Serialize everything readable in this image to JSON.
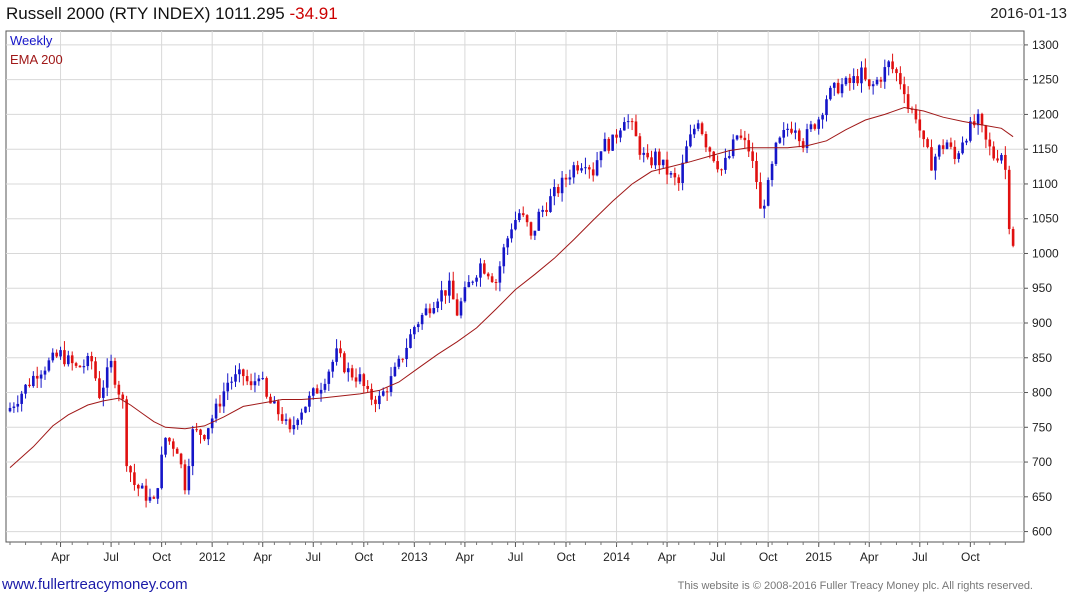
{
  "header": {
    "title": "Russell 2000 (RTY INDEX) 1011.295",
    "change": "-34.91",
    "date": "2016-01-13"
  },
  "footer": {
    "site": "www.fullertreacymoney.com",
    "copyright": "This website is © 2008-2016 Fuller Treacy Money plc. All rights reserved."
  },
  "colors": {
    "up": "#1515c8",
    "down": "#e01010",
    "ema": "#a01818",
    "grid": "#d8d8d8"
  },
  "chart_data": {
    "type": "candlestick",
    "title": "Russell 2000 (RTY INDEX)",
    "period": "Weekly",
    "legend": [
      "Weekly",
      "EMA 200"
    ],
    "legend_placement": "top-left",
    "ylim": [
      585,
      1320
    ],
    "y_ticks": [
      600,
      650,
      700,
      750,
      800,
      850,
      900,
      950,
      1000,
      1050,
      1100,
      1150,
      1200,
      1250,
      1300
    ],
    "x_ticks": [
      {
        "label": "Apr",
        "week": 13
      },
      {
        "label": "Jul",
        "week": 26
      },
      {
        "label": "Oct",
        "week": 39
      },
      {
        "label": "2012",
        "week": 52
      },
      {
        "label": "Apr",
        "week": 65
      },
      {
        "label": "Jul",
        "week": 78
      },
      {
        "label": "Oct",
        "week": 91
      },
      {
        "label": "2013",
        "week": 104
      },
      {
        "label": "Apr",
        "week": 117
      },
      {
        "label": "Jul",
        "week": 130
      },
      {
        "label": "Oct",
        "week": 143
      },
      {
        "label": "2014",
        "week": 156
      },
      {
        "label": "Apr",
        "week": 169
      },
      {
        "label": "Jul",
        "week": 182
      },
      {
        "label": "Oct",
        "week": 195
      },
      {
        "label": "2015",
        "week": 208
      },
      {
        "label": "Apr",
        "week": 221
      },
      {
        "label": "Jul",
        "week": 234
      },
      {
        "label": "Oct",
        "week": 247
      }
    ],
    "weeks_total": 260,
    "weekly_close_path": [
      [
        0,
        778
      ],
      [
        7,
        830
      ],
      [
        13,
        855
      ],
      [
        17,
        835
      ],
      [
        21,
        845
      ],
      [
        23,
        798
      ],
      [
        26,
        840
      ],
      [
        29,
        785
      ],
      [
        30,
        705
      ],
      [
        32,
        668
      ],
      [
        35,
        652
      ],
      [
        37,
        640
      ],
      [
        40,
        735
      ],
      [
        43,
        720
      ],
      [
        45,
        668
      ],
      [
        47,
        742
      ],
      [
        50,
        742
      ],
      [
        53,
        775
      ],
      [
        56,
        815
      ],
      [
        60,
        825
      ],
      [
        62,
        805
      ],
      [
        64,
        830
      ],
      [
        66,
        790
      ],
      [
        70,
        765
      ],
      [
        72,
        740
      ],
      [
        74,
        770
      ],
      [
        77,
        790
      ],
      [
        80,
        812
      ],
      [
        84,
        855
      ],
      [
        87,
        830
      ],
      [
        90,
        820
      ],
      [
        92,
        795
      ],
      [
        95,
        790
      ],
      [
        98,
        818
      ],
      [
        100,
        840
      ],
      [
        104,
        895
      ],
      [
        106,
        910
      ],
      [
        110,
        940
      ],
      [
        113,
        950
      ],
      [
        115,
        915
      ],
      [
        118,
        955
      ],
      [
        121,
        985
      ],
      [
        123,
        975
      ],
      [
        125,
        960
      ],
      [
        127,
        1005
      ],
      [
        129,
        1040
      ],
      [
        131,
        1058
      ],
      [
        133,
        1040
      ],
      [
        134,
        1020
      ],
      [
        136,
        1055
      ],
      [
        139,
        1078
      ],
      [
        142,
        1100
      ],
      [
        145,
        1125
      ],
      [
        148,
        1135
      ],
      [
        150,
        1118
      ],
      [
        152,
        1155
      ],
      [
        155,
        1160
      ],
      [
        158,
        1198
      ],
      [
        160,
        1180
      ],
      [
        162,
        1150
      ],
      [
        164,
        1128
      ],
      [
        166,
        1140
      ],
      [
        168,
        1125
      ],
      [
        170,
        1110
      ],
      [
        172,
        1100
      ],
      [
        174,
        1150
      ],
      [
        177,
        1195
      ],
      [
        179,
        1160
      ],
      [
        181,
        1140
      ],
      [
        183,
        1120
      ],
      [
        185,
        1140
      ],
      [
        187,
        1170
      ],
      [
        190,
        1150
      ],
      [
        192,
        1105
      ],
      [
        193,
        1060
      ],
      [
        195,
        1095
      ],
      [
        197,
        1150
      ],
      [
        200,
        1180
      ],
      [
        202,
        1185
      ],
      [
        204,
        1160
      ],
      [
        206,
        1180
      ],
      [
        208,
        1195
      ],
      [
        210,
        1225
      ],
      [
        213,
        1240
      ],
      [
        216,
        1245
      ],
      [
        219,
        1258
      ],
      [
        221,
        1235
      ],
      [
        224,
        1255
      ],
      [
        226,
        1272
      ],
      [
        228,
        1258
      ],
      [
        230,
        1238
      ],
      [
        231,
        1210
      ],
      [
        233,
        1200
      ],
      [
        235,
        1155
      ],
      [
        237,
        1130
      ],
      [
        239,
        1150
      ],
      [
        241,
        1160
      ],
      [
        243,
        1135
      ],
      [
        245,
        1165
      ],
      [
        247,
        1180
      ],
      [
        249,
        1190
      ],
      [
        251,
        1160
      ],
      [
        253,
        1140
      ],
      [
        255,
        1145
      ],
      [
        256,
        1120
      ],
      [
        257,
        1046
      ],
      [
        258,
        1011
      ]
    ],
    "ema_200_path": [
      [
        0,
        692
      ],
      [
        6,
        722
      ],
      [
        11,
        752
      ],
      [
        15,
        768
      ],
      [
        20,
        782
      ],
      [
        24,
        788
      ],
      [
        28,
        792
      ],
      [
        31,
        782
      ],
      [
        34,
        770
      ],
      [
        37,
        758
      ],
      [
        40,
        750
      ],
      [
        45,
        748
      ],
      [
        50,
        752
      ],
      [
        55,
        765
      ],
      [
        60,
        780
      ],
      [
        65,
        785
      ],
      [
        70,
        790
      ],
      [
        75,
        790
      ],
      [
        80,
        792
      ],
      [
        85,
        795
      ],
      [
        90,
        798
      ],
      [
        95,
        803
      ],
      [
        100,
        815
      ],
      [
        105,
        835
      ],
      [
        110,
        855
      ],
      [
        115,
        873
      ],
      [
        120,
        893
      ],
      [
        125,
        920
      ],
      [
        130,
        948
      ],
      [
        135,
        970
      ],
      [
        140,
        993
      ],
      [
        145,
        1020
      ],
      [
        150,
        1048
      ],
      [
        155,
        1075
      ],
      [
        160,
        1100
      ],
      [
        165,
        1118
      ],
      [
        170,
        1125
      ],
      [
        175,
        1132
      ],
      [
        180,
        1140
      ],
      [
        185,
        1148
      ],
      [
        190,
        1152
      ],
      [
        195,
        1152
      ],
      [
        200,
        1152
      ],
      [
        205,
        1155
      ],
      [
        210,
        1162
      ],
      [
        215,
        1178
      ],
      [
        220,
        1192
      ],
      [
        225,
        1200
      ],
      [
        230,
        1210
      ],
      [
        235,
        1205
      ],
      [
        240,
        1196
      ],
      [
        245,
        1190
      ],
      [
        250,
        1185
      ],
      [
        255,
        1180
      ],
      [
        258,
        1168
      ]
    ]
  }
}
